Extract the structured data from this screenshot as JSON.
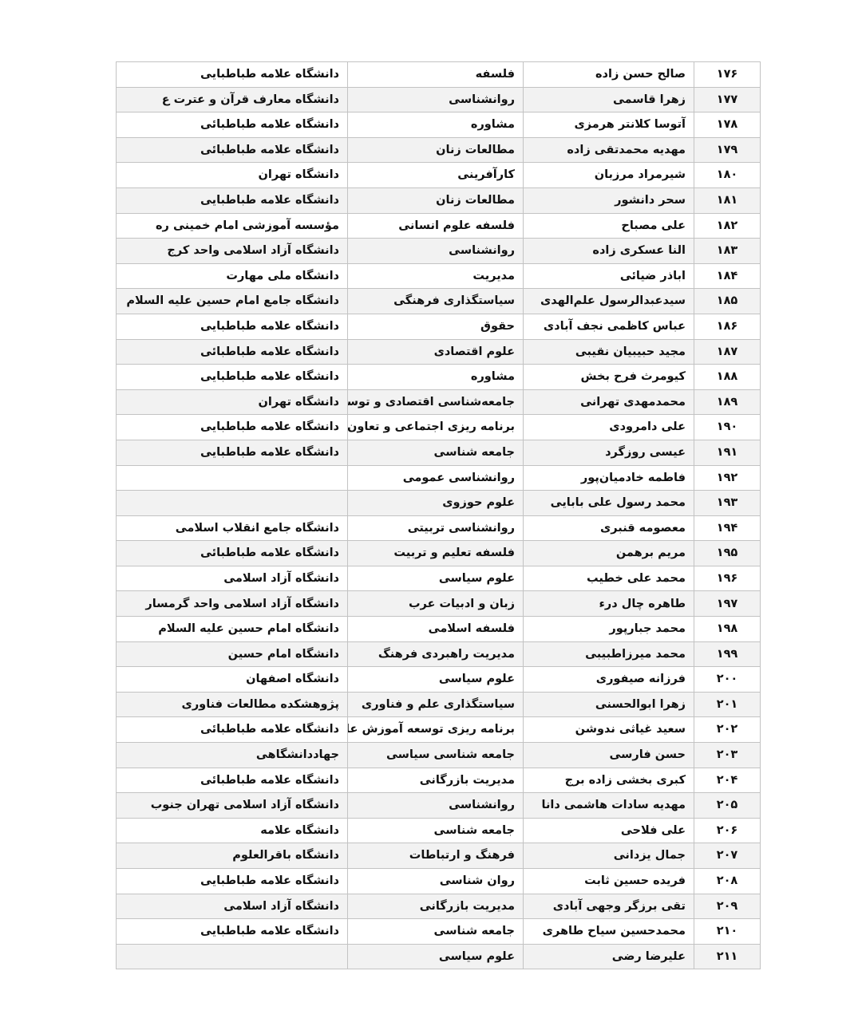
{
  "colors": {
    "stripe": "#f2f2f2",
    "border": "#c3c3c3",
    "text": "#111111",
    "page_background": "#ffffff"
  },
  "table": {
    "direction": "rtl",
    "columns": [
      "number",
      "name",
      "field",
      "university"
    ],
    "rows": [
      {
        "number": "۱۷۶",
        "name": "صالح حسن زاده",
        "field": "فلسفه",
        "university": "دانشگاه علامه طباطبایی"
      },
      {
        "number": "۱۷۷",
        "name": "زهرا قاسمی",
        "field": "روانشناسی",
        "university": "دانشگاه معارف قرآن و عترت ع"
      },
      {
        "number": "۱۷۸",
        "name": "آتوسا کلانتر هرمزی",
        "field": "مشاوره",
        "university": "دانشگاه علامه طباطبائی"
      },
      {
        "number": "۱۷۹",
        "name": "مهدیه محمدتقی زاده",
        "field": "مطالعات زنان",
        "university": "دانشگاه علامه طباطبائی"
      },
      {
        "number": "۱۸۰",
        "name": "شیرمراد مرزبان",
        "field": "کارآفرینی",
        "university": "دانشگاه تهران"
      },
      {
        "number": "۱۸۱",
        "name": "سحر دانشور",
        "field": "مطالعات زنان",
        "university": "دانشگاه علامه طباطبایی"
      },
      {
        "number": "۱۸۲",
        "name": "علی مصباح",
        "field": "فلسفه علوم انسانی",
        "university": "مؤسسه آموزشی امام خمینی ره"
      },
      {
        "number": "۱۸۳",
        "name": "النا عسکری زاده",
        "field": "روانشناسی",
        "university": "دانشگاه آزاد اسلامی واحد کرج"
      },
      {
        "number": "۱۸۴",
        "name": "اباذر ضیائی",
        "field": "مدیریت",
        "university": "دانشگاه ملی مهارت"
      },
      {
        "number": "۱۸۵",
        "name": "سیدعبدالرسول علم‌الهدی",
        "field": "سیاستگذاری فرهنگی",
        "university": "دانشگاه جامع امام حسین علیه السلام"
      },
      {
        "number": "۱۸۶",
        "name": "عباس کاظمی نجف آبادی",
        "field": "حقوق",
        "university": "دانشگاه علامه طباطبایی"
      },
      {
        "number": "۱۸۷",
        "name": "مجید حبیبیان نقیبی",
        "field": "علوم اقتصادی",
        "university": "دانشگاه علامه طباطبائی"
      },
      {
        "number": "۱۸۸",
        "name": "کیومرث فرح بخش",
        "field": "مشاوره",
        "university": "دانشگاه علامه طباطبایی"
      },
      {
        "number": "۱۸۹",
        "name": "محمدمهدی تهرانی",
        "field": "جامعه‌شناسی اقتصادی و توسعه",
        "university": "دانشگاه تهران"
      },
      {
        "number": "۱۹۰",
        "name": "علی دامرودی",
        "field": "برنامه ریزی اجتماعی و تعاون",
        "university": "دانشگاه علامه طباطبایی"
      },
      {
        "number": "۱۹۱",
        "name": "عیسی روزگرد",
        "field": "جامعه شناسی",
        "university": "دانشگاه علامه طباطبایی"
      },
      {
        "number": "۱۹۲",
        "name": "فاطمه خادمیان‌پور",
        "field": "روانشناسی عمومی",
        "university": ""
      },
      {
        "number": "۱۹۳",
        "name": "محمد رسول علی بابایی",
        "field": "علوم حوزوی",
        "university": ""
      },
      {
        "number": "۱۹۴",
        "name": "معصومه قنبری",
        "field": "روانشناسی تربیتی",
        "university": "دانشگاه جامع انقلاب اسلامی"
      },
      {
        "number": "۱۹۵",
        "name": "مریم برهمن",
        "field": "فلسفه تعلیم و تربیت",
        "university": "دانشگاه علامه طباطبائی"
      },
      {
        "number": "۱۹۶",
        "name": "محمد علی خطیب",
        "field": "علوم سیاسی",
        "university": "دانشگاه آزاد اسلامی"
      },
      {
        "number": "۱۹۷",
        "name": "طاهره چال درء",
        "field": "زبان و ادبیات عرب",
        "university": "دانشگاه آزاد اسلامی واحد گرمسار"
      },
      {
        "number": "۱۹۸",
        "name": "محمد جبارپور",
        "field": "فلسفه اسلامی",
        "university": "دانشگاه امام حسین علیه السلام"
      },
      {
        "number": "۱۹۹",
        "name": "محمد میرزاطبیبی",
        "field": "مدیریت راهبردی فرهنگ",
        "university": "دانشگاه امام حسین"
      },
      {
        "number": "۲۰۰",
        "name": "فرزانه صیفوری",
        "field": "علوم سیاسی",
        "university": "دانشگاه اصفهان"
      },
      {
        "number": "۲۰۱",
        "name": "زهرا ابوالحسنی",
        "field": "سیاستگذاری علم و فناوری",
        "university": "پژوهشکده مطالعات فناوری"
      },
      {
        "number": "۲۰۲",
        "name": "سعید غیاثی ندوشن",
        "field": "برنامه ریزی توسعه آموزش عالی",
        "university": "دانشگاه علامه طباطبائی"
      },
      {
        "number": "۲۰۳",
        "name": "حسن فارسی",
        "field": "جامعه شناسی سیاسی",
        "university": "جهاددانشگاهی"
      },
      {
        "number": "۲۰۴",
        "name": "کبری بخشی زاده برج",
        "field": "مدیریت بازرگانی",
        "university": "دانشگاه علامه طباطبائی"
      },
      {
        "number": "۲۰۵",
        "name": "مهدیه سادات هاشمی دانا",
        "field": "روانشناسی",
        "university": "دانشگاه آزاد اسلامی تهران جنوب"
      },
      {
        "number": "۲۰۶",
        "name": "علی فلاحی",
        "field": "جامعه شناسی",
        "university": "دانشگاه علامه"
      },
      {
        "number": "۲۰۷",
        "name": "جمال یزدانی",
        "field": "فرهنگ و ارتباطات",
        "university": "دانشگاه باقرالعلوم"
      },
      {
        "number": "۲۰۸",
        "name": "فریده حسین ثابت",
        "field": "روان شناسی",
        "university": "دانشگاه علامه طباطبایی"
      },
      {
        "number": "۲۰۹",
        "name": "تقی برزگر وجهی آبادی",
        "field": "مدیریت بازرگانی",
        "university": "دانشگاه آزاد اسلامی"
      },
      {
        "number": "۲۱۰",
        "name": "محمدحسین سیاح طاهری",
        "field": "جامعه شناسی",
        "university": "دانشگاه علامه طباطبایی"
      },
      {
        "number": "۲۱۱",
        "name": "علیرضا رضی",
        "field": "علوم سیاسی",
        "university": ""
      }
    ]
  }
}
